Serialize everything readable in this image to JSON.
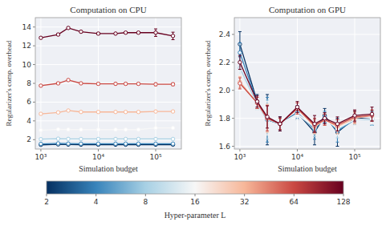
{
  "chart_data": [
    {
      "type": "line",
      "title": "Computation on CPU",
      "x_label": "Simulation budget",
      "y_label": "Regularizer's comp. overhead",
      "log": "x",
      "grid": true,
      "marker": "circle",
      "x": [
        1000,
        2000,
        3000,
        5000,
        10000,
        20000,
        30000,
        50000,
        100000,
        200000
      ],
      "xlim": [
        800,
        280000
      ],
      "xticks": [
        {
          "value": 1000,
          "label": "10³"
        },
        {
          "value": 10000,
          "label": "10⁴"
        },
        {
          "value": 100000,
          "label": "10⁵"
        }
      ],
      "ylim": [
        1.0,
        15.0
      ],
      "yticks": [
        2,
        4,
        6,
        8,
        10,
        12,
        14
      ],
      "series": [
        {
          "color": "#053061",
          "values": [
            1.45,
            1.5,
            1.48,
            1.47,
            1.47,
            1.47,
            1.47,
            1.47,
            1.47,
            1.47
          ],
          "errors": [
            0.03,
            0.03,
            0.03,
            0.03,
            0.03,
            0.03,
            0.03,
            0.03,
            0.03,
            0.03
          ]
        },
        {
          "color": "#3884bb",
          "values": [
            1.55,
            1.6,
            1.58,
            1.57,
            1.57,
            1.57,
            1.57,
            1.57,
            1.57,
            1.57
          ],
          "errors": [
            0.03,
            0.03,
            0.03,
            0.03,
            0.03,
            0.03,
            0.03,
            0.03,
            0.03,
            0.03
          ]
        },
        {
          "color": "#a7d0e4",
          "values": [
            2.05,
            2.1,
            2.08,
            2.07,
            2.07,
            2.07,
            2.07,
            2.07,
            2.07,
            2.07
          ],
          "errors": [
            0.05,
            0.05,
            0.05,
            0.05,
            0.05,
            0.05,
            0.05,
            0.05,
            0.05,
            0.05
          ]
        },
        {
          "color": "#f7f7f7",
          "values": [
            3.0,
            3.1,
            3.08,
            3.07,
            3.07,
            3.07,
            3.07,
            3.07,
            3.25,
            3.25
          ],
          "errors": [
            0.05,
            0.05,
            0.05,
            0.05,
            0.05,
            0.05,
            0.05,
            0.05,
            0.05,
            0.05
          ]
        },
        {
          "color": "#f7b799",
          "values": [
            4.75,
            4.9,
            5.1,
            4.95,
            4.95,
            4.95,
            4.95,
            4.95,
            5.0,
            5.0
          ],
          "errors": [
            0.08,
            0.08,
            0.08,
            0.08,
            0.08,
            0.08,
            0.08,
            0.08,
            0.08,
            0.08
          ]
        },
        {
          "color": "#ca4842",
          "values": [
            7.75,
            8.0,
            8.35,
            8.0,
            7.95,
            7.95,
            7.95,
            7.95,
            7.9,
            7.9
          ],
          "errors": [
            0.1,
            0.1,
            0.1,
            0.1,
            0.1,
            0.1,
            0.1,
            0.1,
            0.15,
            0.15
          ]
        },
        {
          "color": "#67001f",
          "values": [
            12.85,
            13.2,
            13.9,
            13.5,
            13.3,
            13.3,
            13.4,
            13.4,
            13.4,
            13.05
          ],
          "errors": [
            0.1,
            0.1,
            0.1,
            0.1,
            0.1,
            0.1,
            0.1,
            0.1,
            0.4,
            0.4
          ]
        }
      ]
    },
    {
      "type": "line",
      "title": "Computation on GPU",
      "x_label": "Simulation budget",
      "y_label": "Regularizer's comp. overhead",
      "log": "x",
      "grid": true,
      "marker": "circle",
      "x": [
        1000,
        2000,
        3000,
        5000,
        10000,
        20000,
        30000,
        50000,
        100000,
        200000
      ],
      "xlim": [
        800,
        280000
      ],
      "xticks": [
        {
          "value": 1000,
          "label": "10³"
        },
        {
          "value": 10000,
          "label": "10⁴"
        },
        {
          "value": 100000,
          "label": "10⁵"
        }
      ],
      "ylim": [
        1.58,
        2.52
      ],
      "yticks": [
        1.6,
        1.8,
        {
          "value": 2,
          "label": "2.0"
        },
        2.2,
        2.4
      ],
      "series": [
        {
          "color": "#053061",
          "values": [
            2.33,
            1.92,
            1.79,
            1.76,
            1.84,
            1.7,
            1.82,
            1.7,
            1.8,
            1.8
          ],
          "errors": [
            0.09,
            0.05,
            0.18,
            0.05,
            0.05,
            0.09,
            0.05,
            0.1,
            0.05,
            0.05
          ]
        },
        {
          "color": "#3884bb",
          "values": [
            2.27,
            1.91,
            1.79,
            1.76,
            1.84,
            1.72,
            1.81,
            1.71,
            1.79,
            1.79
          ],
          "errors": [
            0.07,
            0.04,
            0.16,
            0.04,
            0.04,
            0.07,
            0.04,
            0.08,
            0.04,
            0.04
          ]
        },
        {
          "color": "#a7d0e4",
          "values": [
            2.16,
            1.9,
            1.79,
            1.76,
            1.83,
            1.73,
            1.8,
            1.72,
            1.79,
            1.79
          ],
          "errors": [
            0.05,
            0.04,
            0.14,
            0.04,
            0.04,
            0.06,
            0.04,
            0.06,
            0.04,
            0.04
          ]
        },
        {
          "color": "#f7f7f7",
          "values": [
            2.1,
            1.9,
            1.8,
            1.76,
            1.83,
            1.74,
            1.79,
            1.73,
            1.79,
            1.8
          ],
          "errors": [
            0.04,
            0.04,
            0.12,
            0.04,
            0.04,
            0.05,
            0.04,
            0.05,
            0.04,
            0.04
          ]
        },
        {
          "color": "#f7b799",
          "values": [
            2.06,
            1.91,
            1.8,
            1.76,
            1.87,
            1.74,
            1.79,
            1.74,
            1.8,
            1.82
          ],
          "errors": [
            0.04,
            0.04,
            0.1,
            0.04,
            0.04,
            0.05,
            0.04,
            0.05,
            0.04,
            0.04
          ]
        },
        {
          "color": "#ca4842",
          "values": [
            2.05,
            1.91,
            1.8,
            1.76,
            1.87,
            1.75,
            1.79,
            1.75,
            1.81,
            1.82
          ],
          "errors": [
            0.04,
            0.04,
            0.09,
            0.04,
            0.04,
            0.05,
            0.04,
            0.04,
            0.04,
            0.04
          ]
        },
        {
          "color": "#67001f",
          "values": [
            2.2,
            1.92,
            1.81,
            1.76,
            1.88,
            1.76,
            1.8,
            1.76,
            1.82,
            1.83
          ],
          "errors": [
            0.05,
            0.04,
            0.08,
            0.05,
            0.04,
            0.06,
            0.04,
            0.05,
            0.04,
            0.05
          ]
        }
      ]
    },
    {
      "type": "colorbar",
      "x_label": "Hyper-parameter L",
      "log": "x",
      "xlim": [
        2,
        128
      ],
      "xticks": [
        2,
        4,
        8,
        16,
        32,
        64,
        128
      ],
      "colors": [
        "#053061",
        "#3884bb",
        "#a7d0e4",
        "#f7f7f7",
        "#f7b799",
        "#ca4842",
        "#67001f"
      ]
    }
  ]
}
